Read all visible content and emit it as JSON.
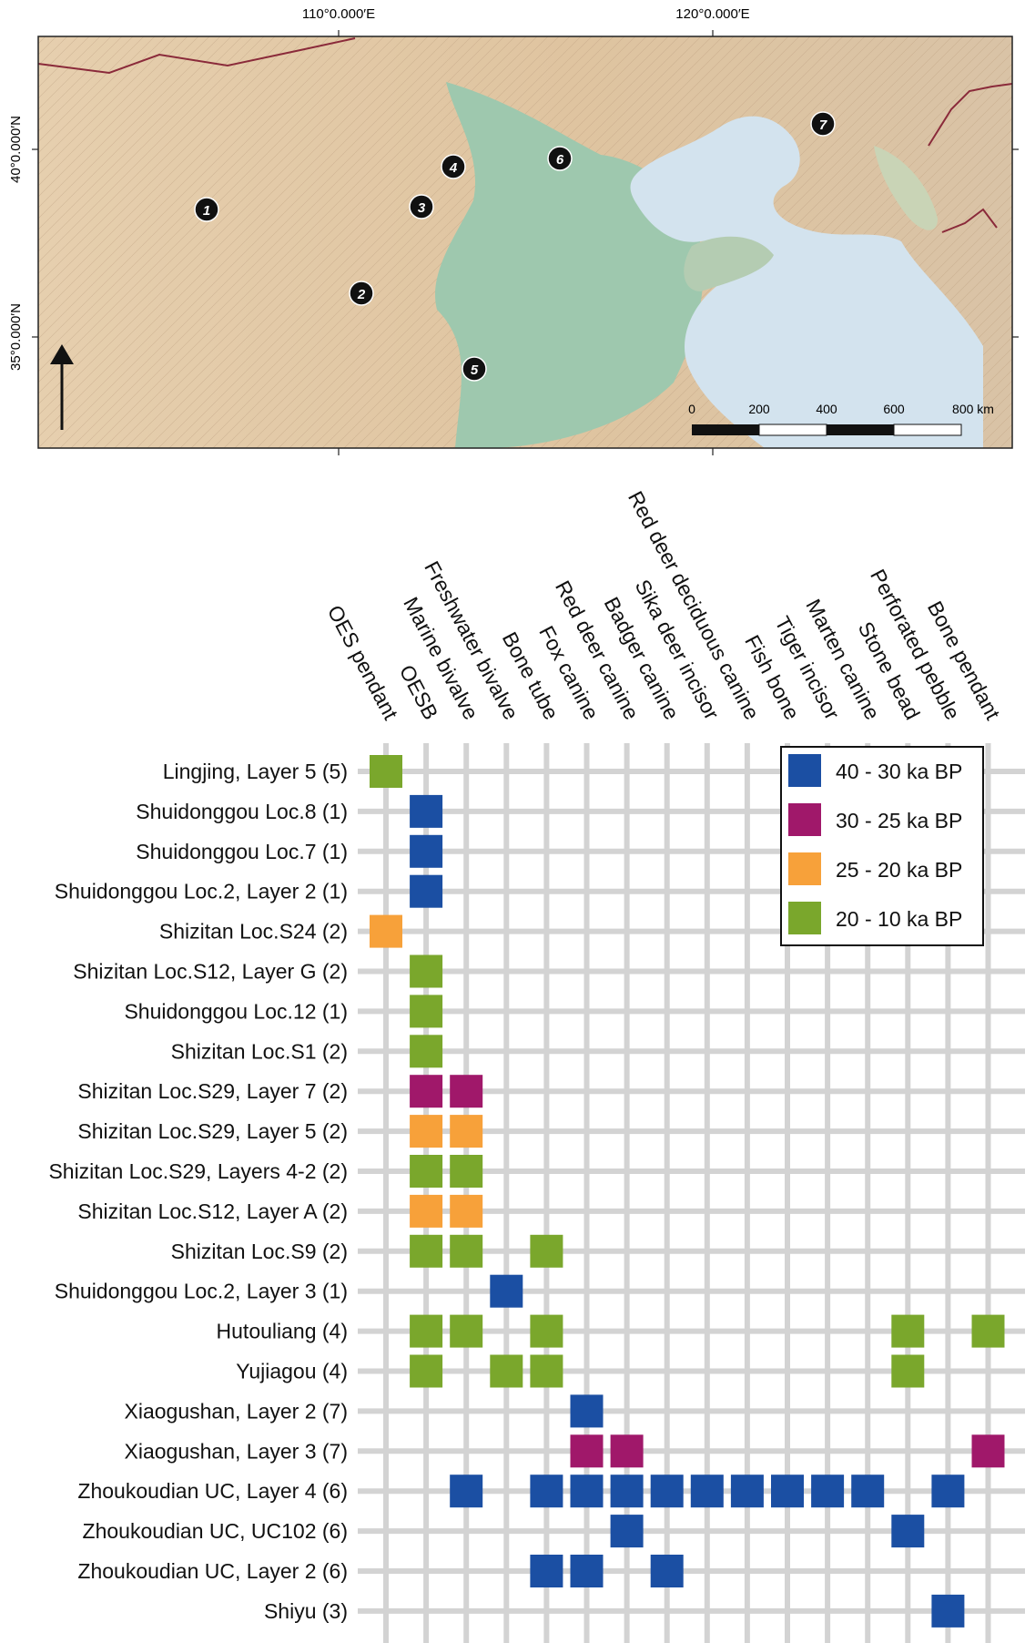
{
  "map": {
    "lon_labels": [
      "110°0.000′E",
      "120°0.000′E"
    ],
    "lat_labels": [
      "40°0.000′N",
      "35°0.000′N"
    ],
    "scale_labels": [
      "0",
      "200",
      "400",
      "600",
      "800 km"
    ],
    "site_markers": [
      "1",
      "2",
      "3",
      "4",
      "5",
      "6",
      "7"
    ],
    "colors": {
      "land": "#e3c9a4",
      "lowland": "#9cc6ac",
      "sea": "#d4e4ee",
      "border": "#8a2a3a"
    }
  },
  "chart_data": {
    "type": "heatmap",
    "columns": [
      "OES pendant",
      "OESB",
      "Marine bivalve",
      "Freshwater bivalve",
      "Bone tube",
      "Fox canine",
      "Red deer canine",
      "Badger canine",
      "Sika deer incisor",
      "Red deer deciduous canine",
      "Fish bone",
      "Tiger incisor",
      "Marten canine",
      "Stone bead",
      "Perforated pebble",
      "Bone pendant"
    ],
    "rows": [
      "Lingjing, Layer 5 (5)",
      "Shuidonggou Loc.8 (1)",
      "Shuidonggou Loc.7 (1)",
      "Shuidonggou Loc.2, Layer 2 (1)",
      "Shizitan Loc.S24 (2)",
      "Shizitan Loc.S12, Layer G (2)",
      "Shuidonggou Loc.12 (1)",
      "Shizitan Loc.S1 (2)",
      "Shizitan Loc.S29, Layer 7 (2)",
      "Shizitan Loc.S29, Layer 5 (2)",
      "Shizitan Loc.S29, Layers 4-2 (2)",
      "Shizitan Loc.S12, Layer A (2)",
      "Shizitan Loc.S9 (2)",
      "Shuidonggou Loc.2, Layer 3 (1)",
      "Hutouliang (4)",
      "Yujiagou (4)",
      "Xiaogushan, Layer 2 (7)",
      "Xiaogushan, Layer 3 (7)",
      "Zhoukoudian UC, Layer 4 (6)",
      "Zhoukoudian UC, UC102 (6)",
      "Zhoukoudian UC, Layer 2 (6)",
      "Shiyu (3)"
    ],
    "legend": [
      {
        "label": "40 - 30 ka BP",
        "color": "#1b4fa3"
      },
      {
        "label": "30 - 25 ka BP",
        "color": "#a0186a"
      },
      {
        "label": "25 - 20 ka BP",
        "color": "#f7a13a"
      },
      {
        "label": "20 - 10 ka BP",
        "color": "#7aa72c"
      }
    ],
    "legend_placement": "top-right",
    "grid": true,
    "cells": [
      [
        0,
        0,
        3
      ],
      [
        1,
        1,
        0
      ],
      [
        2,
        1,
        0
      ],
      [
        3,
        1,
        0
      ],
      [
        4,
        0,
        2
      ],
      [
        5,
        1,
        3
      ],
      [
        6,
        1,
        3
      ],
      [
        7,
        1,
        3
      ],
      [
        8,
        1,
        1
      ],
      [
        8,
        2,
        1
      ],
      [
        9,
        1,
        2
      ],
      [
        9,
        2,
        2
      ],
      [
        10,
        1,
        3
      ],
      [
        10,
        2,
        3
      ],
      [
        11,
        1,
        2
      ],
      [
        11,
        2,
        2
      ],
      [
        12,
        1,
        3
      ],
      [
        12,
        2,
        3
      ],
      [
        12,
        4,
        3
      ],
      [
        13,
        3,
        0
      ],
      [
        14,
        1,
        3
      ],
      [
        14,
        2,
        3
      ],
      [
        14,
        4,
        3
      ],
      [
        14,
        13,
        3
      ],
      [
        14,
        15,
        3
      ],
      [
        15,
        1,
        3
      ],
      [
        15,
        3,
        3
      ],
      [
        15,
        4,
        3
      ],
      [
        15,
        13,
        3
      ],
      [
        16,
        5,
        0
      ],
      [
        17,
        5,
        1
      ],
      [
        17,
        6,
        1
      ],
      [
        17,
        15,
        1
      ],
      [
        18,
        2,
        0
      ],
      [
        18,
        4,
        0
      ],
      [
        18,
        5,
        0
      ],
      [
        18,
        6,
        0
      ],
      [
        18,
        7,
        0
      ],
      [
        18,
        8,
        0
      ],
      [
        18,
        9,
        0
      ],
      [
        18,
        10,
        0
      ],
      [
        18,
        11,
        0
      ],
      [
        18,
        12,
        0
      ],
      [
        18,
        14,
        0
      ],
      [
        19,
        6,
        0
      ],
      [
        19,
        13,
        0
      ],
      [
        20,
        4,
        0
      ],
      [
        20,
        5,
        0
      ],
      [
        20,
        7,
        0
      ],
      [
        21,
        14,
        0
      ]
    ]
  }
}
